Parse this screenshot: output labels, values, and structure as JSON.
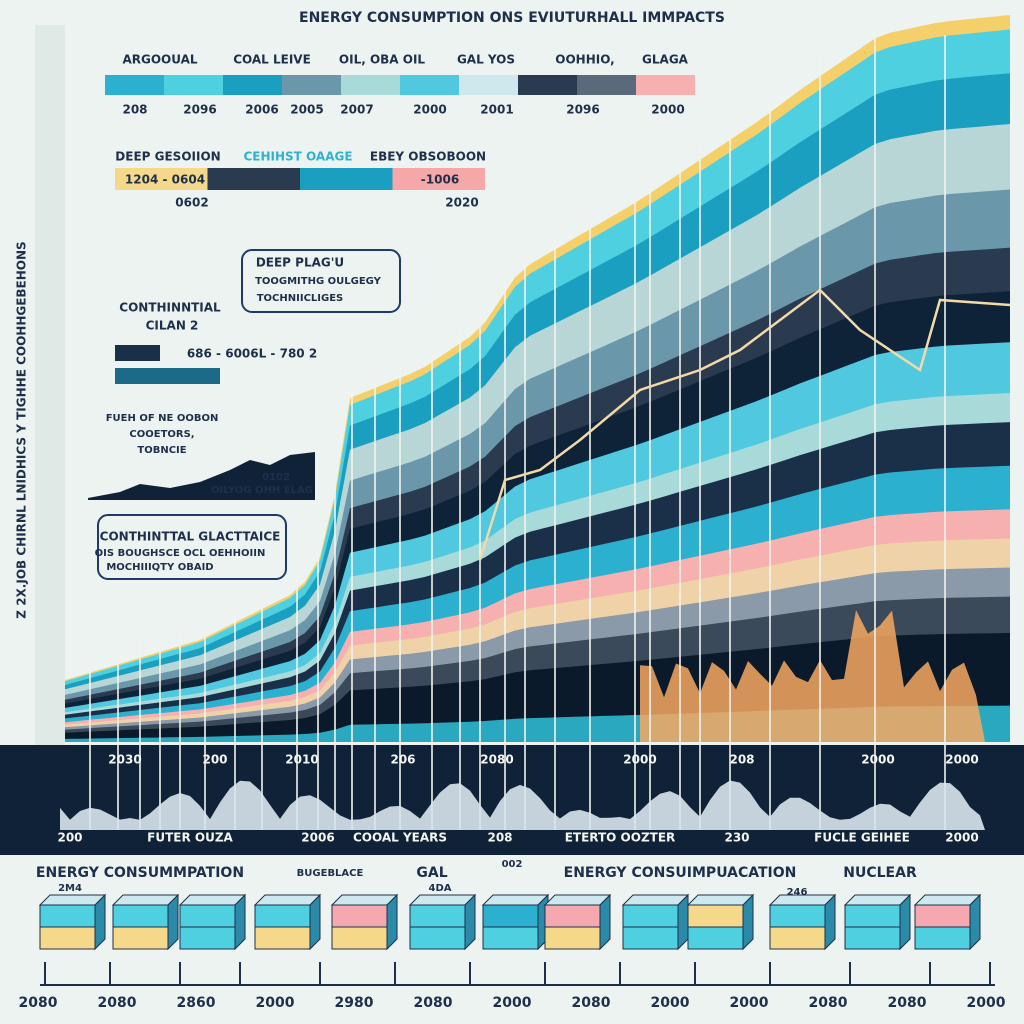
{
  "header": {
    "title": "ENERGY CONSUMPTION ONS EVIUTURHALL IMMPACTS"
  },
  "y_axis_label": "Z 2X.JOB CHIRNL LNIDHICS Y TIGHHE COOHHGEBEHONS",
  "legend_top": {
    "labels": [
      "ARGOOUAL",
      "COAL LEIVE",
      "OIL, OBA OIL",
      "GAL YOS",
      "OOHHIO,",
      "GLAGA"
    ],
    "years": [
      "208",
      "2096",
      "2006",
      "2005",
      "2007",
      "2000",
      "2001",
      "2096",
      "2000"
    ]
  },
  "legend_mid": {
    "labels": [
      "DEEP GESOIION",
      "CEHIHST OAAGE",
      "EBEY OBSOBOON"
    ],
    "ranges": [
      "1204 - 0604",
      "-1006"
    ],
    "markers": [
      "0602",
      "2020"
    ]
  },
  "annotations": {
    "deep_plague": [
      "DEEP PLAG'U",
      "TOOGMITHG OULGEGY",
      "TOCHNIICLIGES"
    ],
    "continental": [
      "CONTHINNTIAL",
      "CILAN 2"
    ],
    "continental_range": "686 - 6006L - 780 2",
    "fuel": [
      "FUEH OF NE OOBON",
      "COOETORS,",
      "TOBNCIE"
    ],
    "inset": [
      "0102",
      "OILYOG OHH ELAG"
    ],
    "glaciers": [
      "CONTHINTTAL GLACTTAICE",
      "OIS BOUGHSCE OCL OEHHOIIN",
      "MOCHIIIQTY OBAID"
    ]
  },
  "x_labels": [
    "2030",
    "200",
    "2010",
    "206",
    "2080",
    "2000",
    "208",
    "2000",
    "2000"
  ],
  "strip_labels": [
    "200",
    "FUTER OUZA",
    "2006",
    "COOAL YEARS",
    "208",
    "ETERTO OOZTER",
    "230",
    "FUCLE GEIHEE",
    "2000"
  ],
  "bottom": {
    "headings": [
      "ENERGY CONSUMMPATION",
      "BUGEBLACE",
      "GAL",
      "002",
      "ENERGY CONSUIMPUACATION",
      "NUCLEAR"
    ],
    "small": [
      "2M4",
      "4DA",
      "246"
    ]
  },
  "timeline": [
    "2080",
    "2080",
    "2860",
    "2000",
    "2980",
    "2080",
    "2000",
    "2080",
    "2000",
    "2000",
    "2080",
    "2080",
    "2000"
  ]
}
